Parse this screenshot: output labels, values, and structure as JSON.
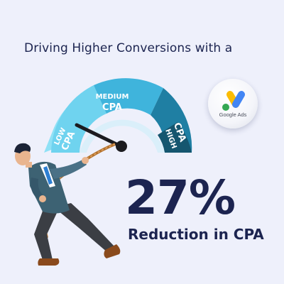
{
  "headline": "Driving Higher Conversions with a",
  "gauge": {
    "low_line1": "LOW",
    "low_line2": "CPA",
    "medium_line1": "MEDIUM",
    "medium_line2": "CPA",
    "high_line1": "HIGH",
    "high_line2": "CPA"
  },
  "badge": {
    "label": "Google Ads"
  },
  "stat": {
    "value": "27%",
    "label": "Reduction in CPA"
  },
  "colors": {
    "background": "#eef0fb",
    "navy": "#1c2450",
    "gauge_low": "#6fd3ef",
    "gauge_medium": "#3fb4dc",
    "gauge_high": "#1f7fa3",
    "gauge_darkest": "#15566f"
  }
}
